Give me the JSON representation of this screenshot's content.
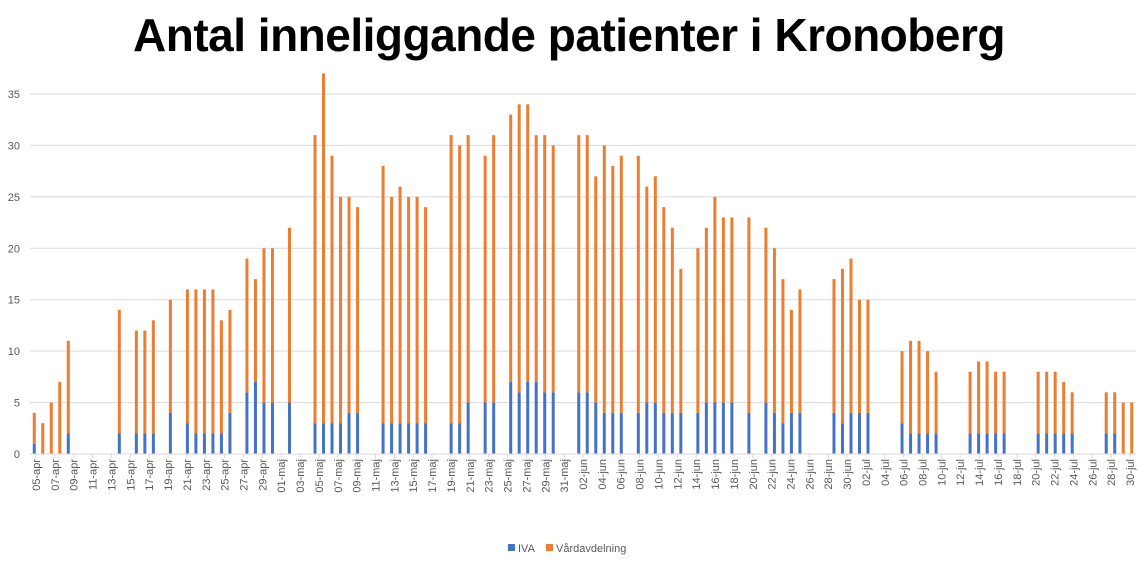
{
  "chart_data": {
    "type": "bar",
    "stacked": true,
    "title": "Antal inneliggande patienter i Kronoberg",
    "ylim": [
      0,
      35
    ],
    "yticks": [
      0,
      5,
      10,
      15,
      20,
      25,
      30,
      35
    ],
    "grid": true,
    "legend_position": "bottom",
    "tick_labels": [
      "05-apr",
      "07-apr",
      "09-apr",
      "11-apr",
      "13-apr",
      "15-apr",
      "17-apr",
      "19-apr",
      "21-apr",
      "23-apr",
      "25-apr",
      "27-apr",
      "29-apr",
      "01-maj",
      "03-maj",
      "05-maj",
      "07-maj",
      "09-maj",
      "11-maj",
      "13-maj",
      "15-maj",
      "17-maj",
      "19-maj",
      "21-maj",
      "23-maj",
      "25-maj",
      "27-maj",
      "29-maj",
      "31-maj",
      "02-jun",
      "04-jun",
      "06-jun",
      "08-jun",
      "10-jun",
      "12-jun",
      "14-jun",
      "16-jun",
      "18-jun",
      "20-jun",
      "22-jun",
      "24-jun",
      "26-jun",
      "28-jun",
      "30-jun",
      "02-jul",
      "04-jul",
      "06-jul",
      "08-jul",
      "10-jul",
      "12-jul",
      "14-jul",
      "16-jul",
      "18-jul",
      "20-jul",
      "22-jul",
      "24-jul",
      "26-jul",
      "28-jul",
      "30-jul"
    ],
    "series": [
      {
        "name": "IVA",
        "color": "#4472C4",
        "values": [
          1,
          0,
          0,
          0,
          2,
          0,
          0,
          0,
          0,
          0,
          2,
          0,
          2,
          2,
          2,
          0,
          4,
          0,
          3,
          2,
          2,
          2,
          2,
          4,
          0,
          6,
          7,
          5,
          5,
          0,
          5,
          0,
          0,
          3,
          3,
          3,
          3,
          4,
          4,
          0,
          0,
          3,
          3,
          3,
          3,
          3,
          3,
          0,
          0,
          3,
          3,
          5,
          0,
          5,
          5,
          0,
          7,
          6,
          7,
          7,
          6,
          6,
          0,
          0,
          6,
          6,
          5,
          4,
          4,
          4,
          0,
          4,
          5,
          5,
          4,
          4,
          4,
          0,
          4,
          5,
          5,
          5,
          5,
          0,
          4,
          0,
          5,
          4,
          3,
          4,
          4,
          0,
          0,
          0,
          4,
          3,
          4,
          4,
          4,
          0,
          0,
          0,
          3,
          2,
          2,
          2,
          2,
          0,
          0,
          0,
          2,
          2,
          2,
          2,
          2,
          0,
          0,
          0,
          2,
          2,
          2,
          2,
          2,
          0,
          0,
          0,
          2,
          2,
          0,
          0
        ]
      },
      {
        "name": "Vårdavdelning",
        "color": "#ED7D31",
        "values": [
          3,
          3,
          5,
          7,
          9,
          0,
          0,
          0,
          0,
          0,
          12,
          0,
          10,
          10,
          11,
          0,
          11,
          0,
          13,
          14,
          14,
          14,
          11,
          10,
          0,
          13,
          10,
          15,
          15,
          0,
          17,
          0,
          0,
          28,
          34,
          26,
          22,
          21,
          20,
          0,
          0,
          25,
          22,
          23,
          22,
          22,
          21,
          0,
          0,
          28,
          27,
          26,
          0,
          24,
          26,
          0,
          26,
          28,
          27,
          24,
          25,
          24,
          0,
          0,
          25,
          25,
          22,
          26,
          24,
          25,
          0,
          25,
          21,
          22,
          20,
          18,
          14,
          0,
          16,
          17,
          20,
          18,
          18,
          0,
          19,
          0,
          17,
          16,
          14,
          10,
          12,
          0,
          0,
          0,
          13,
          15,
          15,
          11,
          11,
          0,
          0,
          0,
          7,
          9,
          9,
          8,
          6,
          0,
          0,
          0,
          6,
          7,
          7,
          6,
          6,
          0,
          0,
          0,
          6,
          6,
          6,
          5,
          4,
          0,
          0,
          0,
          4,
          4,
          5,
          5
        ]
      }
    ]
  }
}
